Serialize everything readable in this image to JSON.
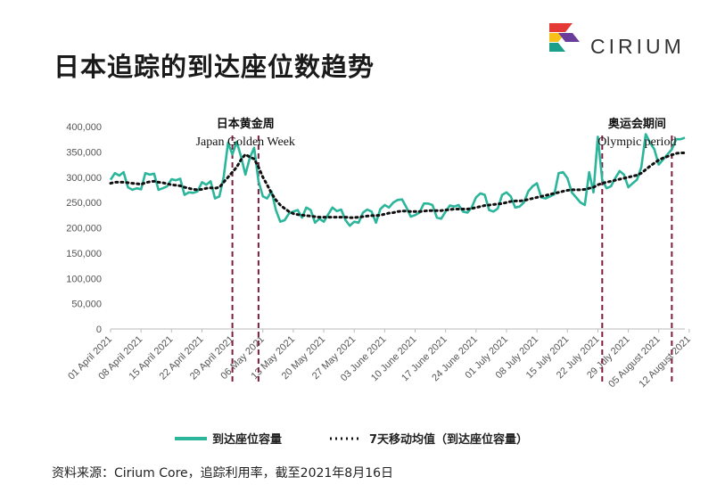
{
  "page": {
    "title": "日本追踪的到达座位数趋势",
    "brand": "CIRIUM",
    "footnote": "资料来源：Cirium Core，追踪利用率，截至2021年8月16日",
    "colors": {
      "series": "#2bb59b",
      "moving_avg": "#111111",
      "marker": "#7a1f3d",
      "logo_red": "#e53935",
      "logo_yellow": "#f9c01a",
      "logo_teal": "#1b9e8a",
      "logo_purple": "#6a3d9a"
    }
  },
  "chart_data": {
    "type": "line",
    "title": "",
    "xlabel": "",
    "ylabel": "",
    "ylim": [
      0,
      400000
    ],
    "yticks": [
      "0",
      "50,000",
      "100,000",
      "150,000",
      "200,000",
      "250,000",
      "300,000",
      "350,000",
      "400,000"
    ],
    "xtick_labels": [
      "01 April 2021",
      "08 April 2021",
      "15 April 2021",
      "22 April 2021",
      "29 April 2021",
      "06 May 2021",
      "13 May 2021",
      "20 May 2021",
      "27 May 2021",
      "03 June 2021",
      "10 June 2021",
      "17 June 2021",
      "24 June 2021",
      "01 July 2021",
      "08 July 2021",
      "15 July 2021",
      "22 July 2021",
      "29 July 2021",
      "05 August 2021",
      "12 August 2021"
    ],
    "grid": false,
    "legend_position": "bottom",
    "x_start": "2021-04-01",
    "series": [
      {
        "name": "到达座位容量",
        "style": "solid",
        "values": [
          295000,
          308000,
          303000,
          310000,
          280000,
          275000,
          278000,
          276000,
          308000,
          305000,
          307000,
          275000,
          278000,
          282000,
          296000,
          294000,
          297000,
          265000,
          270000,
          269000,
          272000,
          290000,
          285000,
          292000,
          258000,
          262000,
          300000,
          368000,
          345000,
          370000,
          340000,
          305000,
          338000,
          358000,
          292000,
          262000,
          258000,
          272000,
          235000,
          212000,
          215000,
          228000,
          232000,
          235000,
          220000,
          240000,
          235000,
          210000,
          218000,
          212000,
          226000,
          240000,
          233000,
          236000,
          215000,
          204000,
          212000,
          210000,
          230000,
          236000,
          232000,
          210000,
          237000,
          245000,
          240000,
          250000,
          255000,
          256000,
          240000,
          222000,
          225000,
          230000,
          248000,
          248000,
          245000,
          220000,
          218000,
          232000,
          244000,
          242000,
          245000,
          232000,
          230000,
          240000,
          260000,
          268000,
          265000,
          235000,
          232000,
          238000,
          265000,
          270000,
          262000,
          240000,
          242000,
          250000,
          272000,
          282000,
          288000,
          260000,
          258000,
          262000,
          266000,
          308000,
          310000,
          298000,
          270000,
          260000,
          250000,
          245000,
          310000,
          270000,
          380000,
          295000,
          278000,
          282000,
          298000,
          312000,
          305000,
          280000,
          288000,
          295000,
          320000,
          385000,
          368000,
          355000,
          325000,
          335000,
          345000,
          355000,
          375000,
          375000,
          378000
        ]
      },
      {
        "name": "7天移动均值（到达座位容量）",
        "style": "dotted",
        "values": [
          288000,
          290000,
          290000,
          290000,
          289000,
          288000,
          287000,
          286000,
          289000,
          291000,
          292000,
          290000,
          289000,
          287000,
          285000,
          284000,
          283000,
          280000,
          278000,
          276000,
          275000,
          276000,
          278000,
          279000,
          278000,
          280000,
          290000,
          300000,
          310000,
          320000,
          335000,
          345000,
          340000,
          336000,
          320000,
          300000,
          285000,
          268000,
          255000,
          245000,
          238000,
          232000,
          228000,
          226000,
          225000,
          224000,
          223000,
          222000,
          221000,
          221000,
          221000,
          221000,
          221000,
          221000,
          221000,
          220000,
          220000,
          221000,
          222000,
          223000,
          224000,
          224000,
          225000,
          227000,
          229000,
          230000,
          232000,
          233000,
          233000,
          232000,
          232000,
          232000,
          233000,
          234000,
          234000,
          234000,
          234000,
          235000,
          236000,
          237000,
          237000,
          237000,
          237000,
          238000,
          240000,
          242000,
          244000,
          245000,
          246000,
          247000,
          248000,
          250000,
          252000,
          253000,
          253000,
          254000,
          256000,
          258000,
          260000,
          262000,
          264000,
          266000,
          268000,
          270000,
          272000,
          274000,
          275000,
          275000,
          275000,
          276000,
          278000,
          280000,
          285000,
          288000,
          290000,
          292000,
          294000,
          296000,
          298000,
          300000,
          302000,
          304000,
          308000,
          315000,
          322000,
          328000,
          334000,
          338000,
          341000,
          344000,
          347000,
          348000,
          348000
        ]
      }
    ],
    "annotations": [
      {
        "cn": "日本黄金周",
        "en": "Japan Golden Week",
        "x_start": "2021-04-29",
        "x_end": "2021-05-05"
      },
      {
        "cn": "奥运会期间",
        "en": "Olympic period",
        "x_start": "2021-07-23",
        "x_end": "2021-08-08"
      }
    ]
  }
}
